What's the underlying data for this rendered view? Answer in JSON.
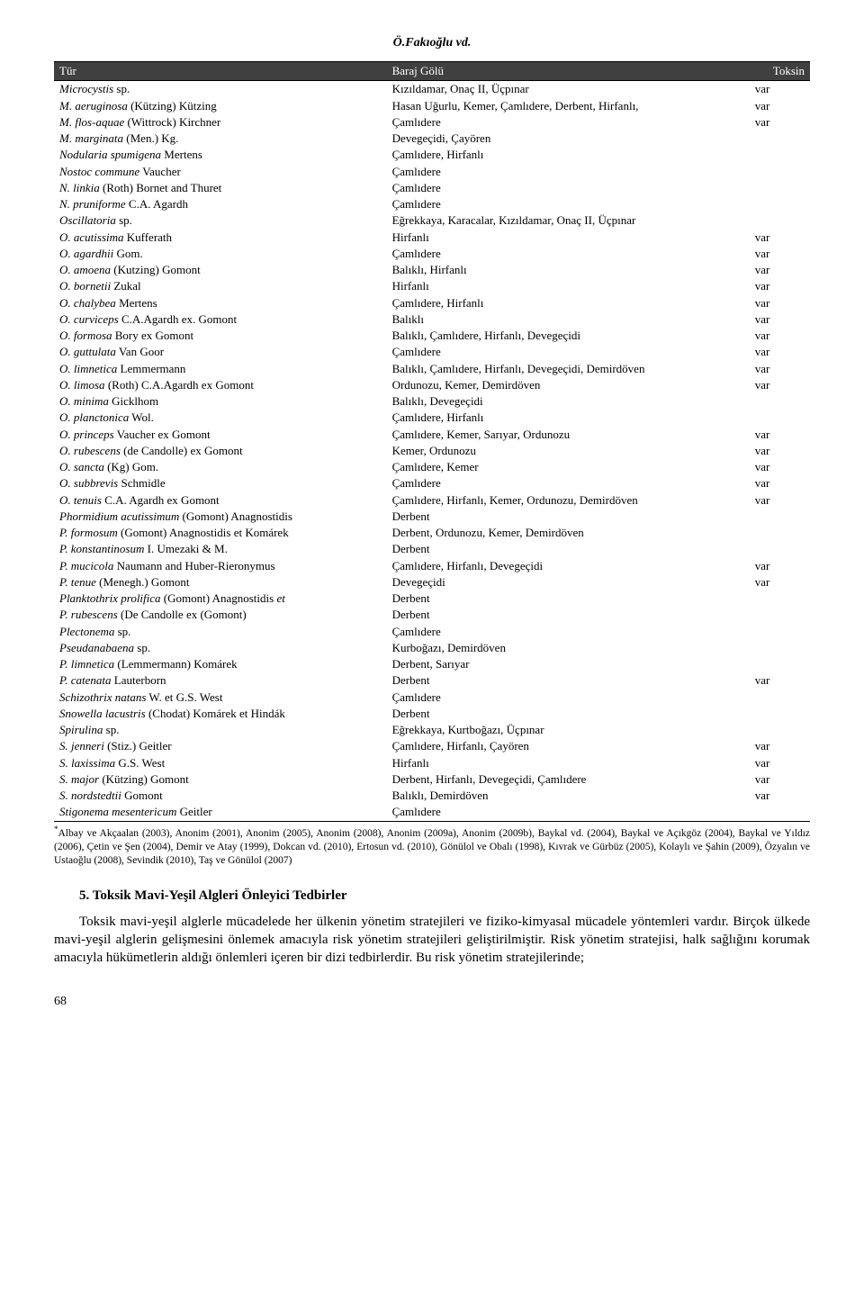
{
  "header": "Ö.Fakıoğlu vd.",
  "columns": {
    "species": "Tür",
    "location": "Baraj Gölü",
    "toxin": "Toksin"
  },
  "rows": [
    {
      "species": "<em>Microcystis</em> sp.",
      "location": "Kızıldamar, Onaç II, Üçpınar",
      "toxin": "var"
    },
    {
      "species": "<em>M. aeruginosa</em> (Kützing) Kützing",
      "location": "Hasan Uğurlu, Kemer, Çamlıdere, Derbent, Hirfanlı,",
      "toxin": "var"
    },
    {
      "species": "<em>M. flos-aquae</em> (Wittrock) Kirchner",
      "location": "Çamlıdere",
      "toxin": "var"
    },
    {
      "species": "<em>M. marginata</em> (Men.) Kg.",
      "location": "Devegeçidi, Çayören",
      "toxin": ""
    },
    {
      "species": "<em>Nodularia spumigena</em> Mertens",
      "location": "Çamlıdere, Hirfanlı",
      "toxin": ""
    },
    {
      "species": "<em>Nostoc commune</em> Vaucher",
      "location": "Çamlıdere",
      "toxin": ""
    },
    {
      "species": "<em>N. linkia</em> (Roth) Bornet and Thuret",
      "location": "Çamlıdere",
      "toxin": ""
    },
    {
      "species": "<em>N. pruniforme</em> C.A. Agardh",
      "location": "Çamlıdere",
      "toxin": ""
    },
    {
      "species": "<em>Oscillatoria</em> sp.",
      "location": "Eğrekkaya, Karacalar, Kızıldamar, Onaç II, Üçpınar",
      "toxin": ""
    },
    {
      "species": "<em>O. acutissima</em> Kufferath",
      "location": "Hirfanlı",
      "toxin": "var"
    },
    {
      "species": "<em>O. agardhii</em> Gom.",
      "location": "Çamlıdere",
      "toxin": "var"
    },
    {
      "species": "<em>O. amoena</em> (Kutzing) Gomont",
      "location": "Balıklı, Hirfanlı",
      "toxin": "var"
    },
    {
      "species": "<em>O. bornetii</em> Zukal",
      "location": "Hirfanlı",
      "toxin": "var"
    },
    {
      "species": "<em>O. chalybea</em> Mertens",
      "location": "Çamlıdere, Hirfanlı",
      "toxin": "var"
    },
    {
      "species": "<em>O. curviceps</em> C.A.Agardh ex. Gomont",
      "location": "Balıklı",
      "toxin": "var"
    },
    {
      "species": "<em>O. formosa</em> Bory ex Gomont",
      "location": "Balıklı, Çamlıdere, Hirfanlı, Devegeçidi",
      "toxin": "var"
    },
    {
      "species": "<em>O. guttulata</em> Van Goor",
      "location": "Çamlıdere",
      "toxin": "var"
    },
    {
      "species": "<em>O. limnetica</em> Lemmermann",
      "location": "Balıklı, Çamlıdere, Hirfanlı, Devegeçidi, Demirdöven",
      "toxin": "var"
    },
    {
      "species": "<em>O. limosa</em> (Roth) C.A.Agardh ex Gomont",
      "location": "Ordunozu, Kemer, Demirdöven",
      "toxin": "var"
    },
    {
      "species": "<em>O. minima</em> Gicklhom",
      "location": "Balıklı, Devegeçidi",
      "toxin": ""
    },
    {
      "species": "<em>O. planctonica</em> Wol.",
      "location": "Çamlıdere, Hirfanlı",
      "toxin": ""
    },
    {
      "species": "<em>O. princeps</em> Vaucher ex Gomont",
      "location": "Çamlıdere, Kemer, Sarıyar, Ordunozu",
      "toxin": "var"
    },
    {
      "species": "<em>O. rubescens</em> (de Candolle) ex Gomont",
      "location": "Kemer, Ordunozu",
      "toxin": "var"
    },
    {
      "species": "<em>O. sancta</em> (Kg) Gom.",
      "location": "Çamlıdere, Kemer",
      "toxin": "var"
    },
    {
      "species": "<em>O. subbrevis</em> Schmidle",
      "location": "Çamlıdere",
      "toxin": "var"
    },
    {
      "species": "<em>O. tenuis</em> C.A. Agardh ex Gomont",
      "location": "Çamlıdere, Hirfanlı, Kemer, Ordunozu, Demirdöven",
      "toxin": "var"
    },
    {
      "species": "<em>Phormidium acutissimum</em> (Gomont) Anagnostidis",
      "location": "Derbent",
      "toxin": ""
    },
    {
      "species": "<em>P. formosum</em> (Gomont) Anagnostidis et Komárek",
      "location": "Derbent, Ordunozu, Kemer, Demirdöven",
      "toxin": ""
    },
    {
      "species": "<em>P. konstantinosum</em> I. Umezaki & M.",
      "location": "Derbent",
      "toxin": ""
    },
    {
      "species": "<em>P. mucicola</em> Naumann and Huber-Rieronymus",
      "location": "Çamlıdere, Hirfanlı, Devegeçidi",
      "toxin": "var"
    },
    {
      "species": "<em>P. tenue</em> (Menegh.) Gomont",
      "location": "Devegeçidi",
      "toxin": "var"
    },
    {
      "species": "<em>Planktothrix prolifica</em> (Gomont) Anagnostidis <em>et</em>",
      "location": "Derbent",
      "toxin": ""
    },
    {
      "species": "<em>P. rubescens</em> (De Candolle ex (Gomont)",
      "location": "Derbent",
      "toxin": ""
    },
    {
      "species": "<em>Plectonema</em> sp.",
      "location": "Çamlıdere",
      "toxin": ""
    },
    {
      "species": "<em>Pseudanabaena</em> sp.",
      "location": "Kurboğazı, Demirdöven",
      "toxin": ""
    },
    {
      "species": "<em>P. limnetica</em> (Lemmermann) Komárek",
      "location": "Derbent, Sarıyar",
      "toxin": ""
    },
    {
      "species": "<em>P. catenata</em> Lauterborn",
      "location": "Derbent",
      "toxin": "var"
    },
    {
      "species": "<em>Schizothrix natans</em> W. et G.S. West",
      "location": "Çamlıdere",
      "toxin": ""
    },
    {
      "species": "<em>Snowella lacustris</em> (Chodat) Komárek et Hindák",
      "location": "Derbent",
      "toxin": ""
    },
    {
      "species": "<em>Spirulina</em> sp.",
      "location": "Eğrekkaya, Kurtboğazı, Üçpınar",
      "toxin": ""
    },
    {
      "species": "<em>S. jenneri</em> (Stiz.) Geitler",
      "location": "Çamlıdere, Hirfanlı, Çayören",
      "toxin": "var"
    },
    {
      "species": "<em>S. laxissima</em> G.S. West",
      "location": "Hirfanlı",
      "toxin": "var"
    },
    {
      "species": "<em>S. major</em> (Kützing) Gomont",
      "location": "Derbent, Hirfanlı, Devegeçidi, Çamlıdere",
      "toxin": "var"
    },
    {
      "species": "<em>S. nordstedtii</em> Gomont",
      "location": "Balıklı, Demirdöven",
      "toxin": "var"
    },
    {
      "species": "<em>Stigonema mesentericum</em> Geitler",
      "location": "Çamlıdere",
      "toxin": ""
    }
  ],
  "footnote": "Albay ve Akçaalan (2003), Anonim (2001), Anonim (2005), Anonim (2008), Anonim (2009a), Anonim (2009b), Baykal vd. (2004), Baykal ve Açıkgöz (2004), Baykal ve Yıldız (2006), Çetin ve Şen (2004), Demir ve Atay (1999), Dokcan vd. (2010), Ertosun vd. (2010), Gönülol ve Obalı (1998), Kıvrak ve Gürbüz (2005), Kolaylı ve Şahin (2009), Özyalın ve Ustaoğlu (2008), Sevindik (2010), Taş ve Gönülol (2007)",
  "sectionHeading": "5. Toksik Mavi-Yeşil Algleri Önleyici Tedbirler",
  "bodyParagraph": "Toksik mavi-yeşil alglerle mücadelede her ülkenin yönetim stratejileri ve fiziko-kimyasal mücadele yöntemleri vardır. Birçok ülkede mavi-yeşil alglerin gelişmesini önlemek amacıyla risk yönetim stratejileri geliştirilmiştir. Risk yönetim stratejisi, halk sağlığını korumak amacıyla hükümetlerin aldığı önlemleri içeren bir dizi tedbirlerdir. Bu risk yönetim stratejilerinde;",
  "pageNumber": "68"
}
